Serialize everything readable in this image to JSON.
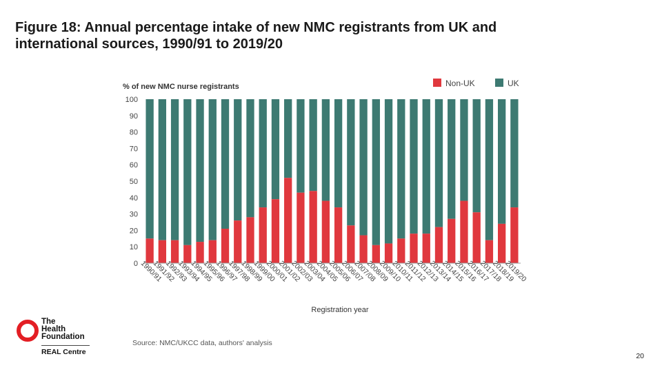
{
  "title": {
    "line1": "Figure 18: Annual percentage intake of new NMC registrants from UK and",
    "line2": "international sources, 1990/91 to 2019/20"
  },
  "logo": {
    "line1": "The",
    "line2": "Health",
    "line3": "Foundation",
    "sub": "REAL Centre"
  },
  "source": "Source: NMC/UKCC data, authors' analysis",
  "page_number": "20",
  "colors": {
    "non_uk": "#e0383e",
    "uk": "#3d7a72",
    "brand_red": "#e31e24"
  },
  "chart_data": {
    "type": "bar",
    "stacked": true,
    "ylabel": "% of new NMC nurse registrants",
    "xlabel": "Registration year",
    "ylim": [
      0,
      100
    ],
    "yticks": [
      0,
      10,
      20,
      30,
      40,
      50,
      60,
      70,
      80,
      90,
      100
    ],
    "legend": [
      "Non-UK",
      "UK"
    ],
    "legend_position": "top-right",
    "categories": [
      "1990/91",
      "1991/92",
      "1992/93",
      "1993/94",
      "1994/95",
      "1995/96",
      "1996/97",
      "1997/98",
      "1998/99",
      "1999/00",
      "2000/01",
      "2001/02",
      "2002/03",
      "2003/04",
      "2004/05",
      "2005/06",
      "2006/07",
      "2007/08",
      "2008/09",
      "2009/10",
      "2010/11",
      "2011/12",
      "2012/13",
      "2013/14",
      "2014/15",
      "2015/16",
      "2016/17",
      "2017/18",
      "2018/19",
      "2019/20"
    ],
    "series": [
      {
        "name": "Non-UK",
        "values": [
          15,
          14,
          14,
          11,
          13,
          14,
          21,
          26,
          28,
          34,
          39,
          52,
          43,
          44,
          38,
          34,
          23,
          17,
          11,
          12,
          15,
          18,
          18,
          22,
          27,
          38,
          31,
          14,
          24,
          34
        ]
      },
      {
        "name": "UK",
        "values": [
          85,
          86,
          86,
          89,
          87,
          86,
          79,
          74,
          72,
          66,
          61,
          48,
          57,
          56,
          62,
          66,
          77,
          83,
          89,
          88,
          85,
          82,
          82,
          78,
          73,
          62,
          69,
          86,
          76,
          66
        ]
      }
    ]
  }
}
